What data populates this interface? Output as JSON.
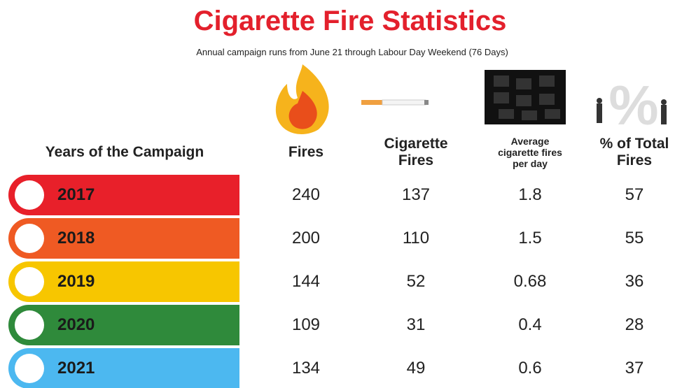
{
  "header": {
    "title": "Cigarette Fire Statistics",
    "subtitle": "Annual campaign runs from June 21 through Labour Day Weekend (76 Days)"
  },
  "table": {
    "columns": [
      "Years of the Campaign",
      "Fires",
      "Cigarette Fires",
      "Average cigarette fires per day",
      "% of Total Fires"
    ],
    "rows": [
      [
        "2017",
        240,
        137,
        1.8,
        57
      ],
      [
        "2018",
        200,
        110,
        1.5,
        55
      ],
      [
        "2019",
        144,
        52,
        0.68,
        36
      ],
      [
        "2020",
        109,
        31,
        0.4,
        28
      ],
      [
        "2021",
        134,
        49,
        0.6,
        37
      ]
    ]
  }
}
